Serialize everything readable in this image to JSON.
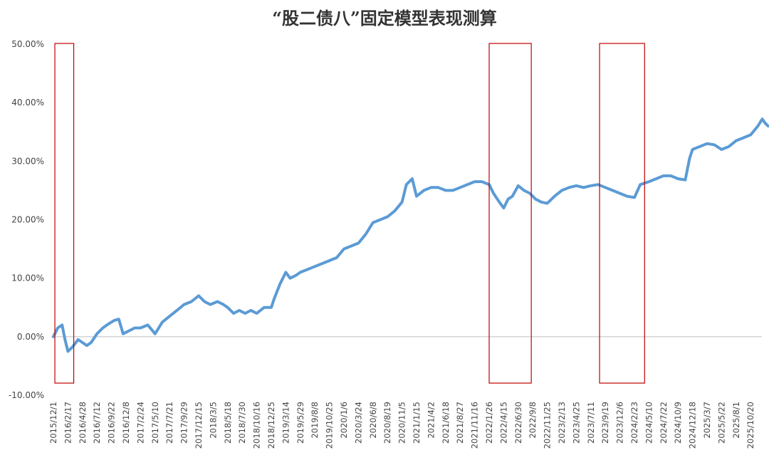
{
  "chart_data": {
    "type": "line",
    "title": "“股二债八”固定模型表现测算",
    "xlabel": "",
    "ylabel": "",
    "ylim": [
      -0.1,
      0.5
    ],
    "y_ticks": [
      "50.00%",
      "40.00%",
      "30.00%",
      "20.00%",
      "10.00%",
      "0.00%",
      "-10.00%"
    ],
    "y_tick_values": [
      0.5,
      0.4,
      0.3,
      0.2,
      0.1,
      0.0,
      -0.1
    ],
    "x_tick_labels": [
      "2015/12/1",
      "2016/2/17",
      "2016/4/28",
      "2016/7/12",
      "2016/9/22",
      "2016/12/8",
      "2017/2/24",
      "2017/5/10",
      "2017/7/21",
      "2017/9/29",
      "2017/12/15",
      "2018/3/5",
      "2018/5/18",
      "2018/7/30",
      "2018/10/16",
      "2018/12/25",
      "2019/3/14",
      "2019/5/29",
      "2019/8/8",
      "2019/10/25",
      "2020/1/6",
      "2020/3/24",
      "2020/6/8",
      "2020/8/19",
      "2020/11/5",
      "2021/1/15",
      "2021/4/2",
      "2021/6/18",
      "2021/8/27",
      "2021/11/16",
      "2022/1/26",
      "2022/4/15",
      "2022/6/30",
      "2022/9/8",
      "2022/11/25",
      "2023/2/13",
      "2023/4/25",
      "2023/7/11",
      "2023/9/19",
      "2023/12/6",
      "2024/2/23",
      "2024/5/10",
      "2024/7/22",
      "2024/10/9",
      "2024/12/18",
      "2025/3/7",
      "2025/5/22",
      "2025/8/1",
      "2025/10/20"
    ],
    "grid": false,
    "legend": "none",
    "line_color": "#5b9bd5",
    "series": [
      {
        "name": "",
        "points": [
          [
            0,
            0.0
          ],
          [
            0.3,
            0.015
          ],
          [
            0.6,
            0.02
          ],
          [
            0.8,
            -0.005
          ],
          [
            1.0,
            -0.025
          ],
          [
            1.3,
            -0.018
          ],
          [
            1.7,
            -0.005
          ],
          [
            2.0,
            -0.01
          ],
          [
            2.3,
            -0.015
          ],
          [
            2.6,
            -0.01
          ],
          [
            3.0,
            0.005
          ],
          [
            3.4,
            0.015
          ],
          [
            3.8,
            0.022
          ],
          [
            4.2,
            0.028
          ],
          [
            4.5,
            0.03
          ],
          [
            4.8,
            0.005
          ],
          [
            5.2,
            0.01
          ],
          [
            5.6,
            0.015
          ],
          [
            6.0,
            0.015
          ],
          [
            6.5,
            0.02
          ],
          [
            7.0,
            0.005
          ],
          [
            7.5,
            0.025
          ],
          [
            8.0,
            0.035
          ],
          [
            8.5,
            0.045
          ],
          [
            9.0,
            0.055
          ],
          [
            9.5,
            0.06
          ],
          [
            10.0,
            0.07
          ],
          [
            10.4,
            0.06
          ],
          [
            10.8,
            0.055
          ],
          [
            11.3,
            0.06
          ],
          [
            11.7,
            0.055
          ],
          [
            12.0,
            0.05
          ],
          [
            12.4,
            0.04
          ],
          [
            12.8,
            0.045
          ],
          [
            13.2,
            0.04
          ],
          [
            13.6,
            0.045
          ],
          [
            14.0,
            0.04
          ],
          [
            14.5,
            0.05
          ],
          [
            15.0,
            0.05
          ],
          [
            15.2,
            0.065
          ],
          [
            15.6,
            0.09
          ],
          [
            16.0,
            0.11
          ],
          [
            16.3,
            0.1
          ],
          [
            16.7,
            0.105
          ],
          [
            17.0,
            0.11
          ],
          [
            17.5,
            0.115
          ],
          [
            18.0,
            0.12
          ],
          [
            18.5,
            0.125
          ],
          [
            19.0,
            0.13
          ],
          [
            19.5,
            0.135
          ],
          [
            20.0,
            0.15
          ],
          [
            20.5,
            0.155
          ],
          [
            21.0,
            0.16
          ],
          [
            21.5,
            0.175
          ],
          [
            22.0,
            0.195
          ],
          [
            22.5,
            0.2
          ],
          [
            23.0,
            0.205
          ],
          [
            23.5,
            0.215
          ],
          [
            24.0,
            0.23
          ],
          [
            24.3,
            0.26
          ],
          [
            24.7,
            0.27
          ],
          [
            25.0,
            0.24
          ],
          [
            25.5,
            0.25
          ],
          [
            26.0,
            0.255
          ],
          [
            26.5,
            0.255
          ],
          [
            27.0,
            0.25
          ],
          [
            27.5,
            0.25
          ],
          [
            28.0,
            0.255
          ],
          [
            28.5,
            0.26
          ],
          [
            29.0,
            0.265
          ],
          [
            29.5,
            0.265
          ],
          [
            30.0,
            0.26
          ],
          [
            30.3,
            0.245
          ],
          [
            30.7,
            0.23
          ],
          [
            31.0,
            0.22
          ],
          [
            31.3,
            0.235
          ],
          [
            31.6,
            0.24
          ],
          [
            32.0,
            0.258
          ],
          [
            32.4,
            0.25
          ],
          [
            32.8,
            0.245
          ],
          [
            33.2,
            0.235
          ],
          [
            33.6,
            0.23
          ],
          [
            34.0,
            0.228
          ],
          [
            34.5,
            0.24
          ],
          [
            35.0,
            0.25
          ],
          [
            35.5,
            0.255
          ],
          [
            36.0,
            0.258
          ],
          [
            36.5,
            0.255
          ],
          [
            37.0,
            0.258
          ],
          [
            37.5,
            0.26
          ],
          [
            38.0,
            0.255
          ],
          [
            38.5,
            0.25
          ],
          [
            39.0,
            0.245
          ],
          [
            39.5,
            0.24
          ],
          [
            40.0,
            0.238
          ],
          [
            40.4,
            0.26
          ],
          [
            41.0,
            0.265
          ],
          [
            41.5,
            0.27
          ],
          [
            42.0,
            0.275
          ],
          [
            42.5,
            0.275
          ],
          [
            43.0,
            0.27
          ],
          [
            43.5,
            0.268
          ],
          [
            43.8,
            0.305
          ],
          [
            44.0,
            0.32
          ],
          [
            44.5,
            0.325
          ],
          [
            45.0,
            0.33
          ],
          [
            45.5,
            0.328
          ],
          [
            46.0,
            0.32
          ],
          [
            46.5,
            0.325
          ],
          [
            47.0,
            0.335
          ],
          [
            47.5,
            0.34
          ],
          [
            48.0,
            0.345
          ],
          [
            48.5,
            0.36
          ],
          [
            48.8,
            0.372
          ],
          [
            49.0,
            0.365
          ],
          [
            49.2,
            0.36
          ]
        ]
      }
    ],
    "highlight_boxes_x_index": [
      [
        0.1,
        1.4
      ],
      [
        30.0,
        32.9
      ],
      [
        37.6,
        40.7
      ]
    ],
    "highlight_color": "#c00000",
    "zero_line_color": "#bfbfbf"
  }
}
